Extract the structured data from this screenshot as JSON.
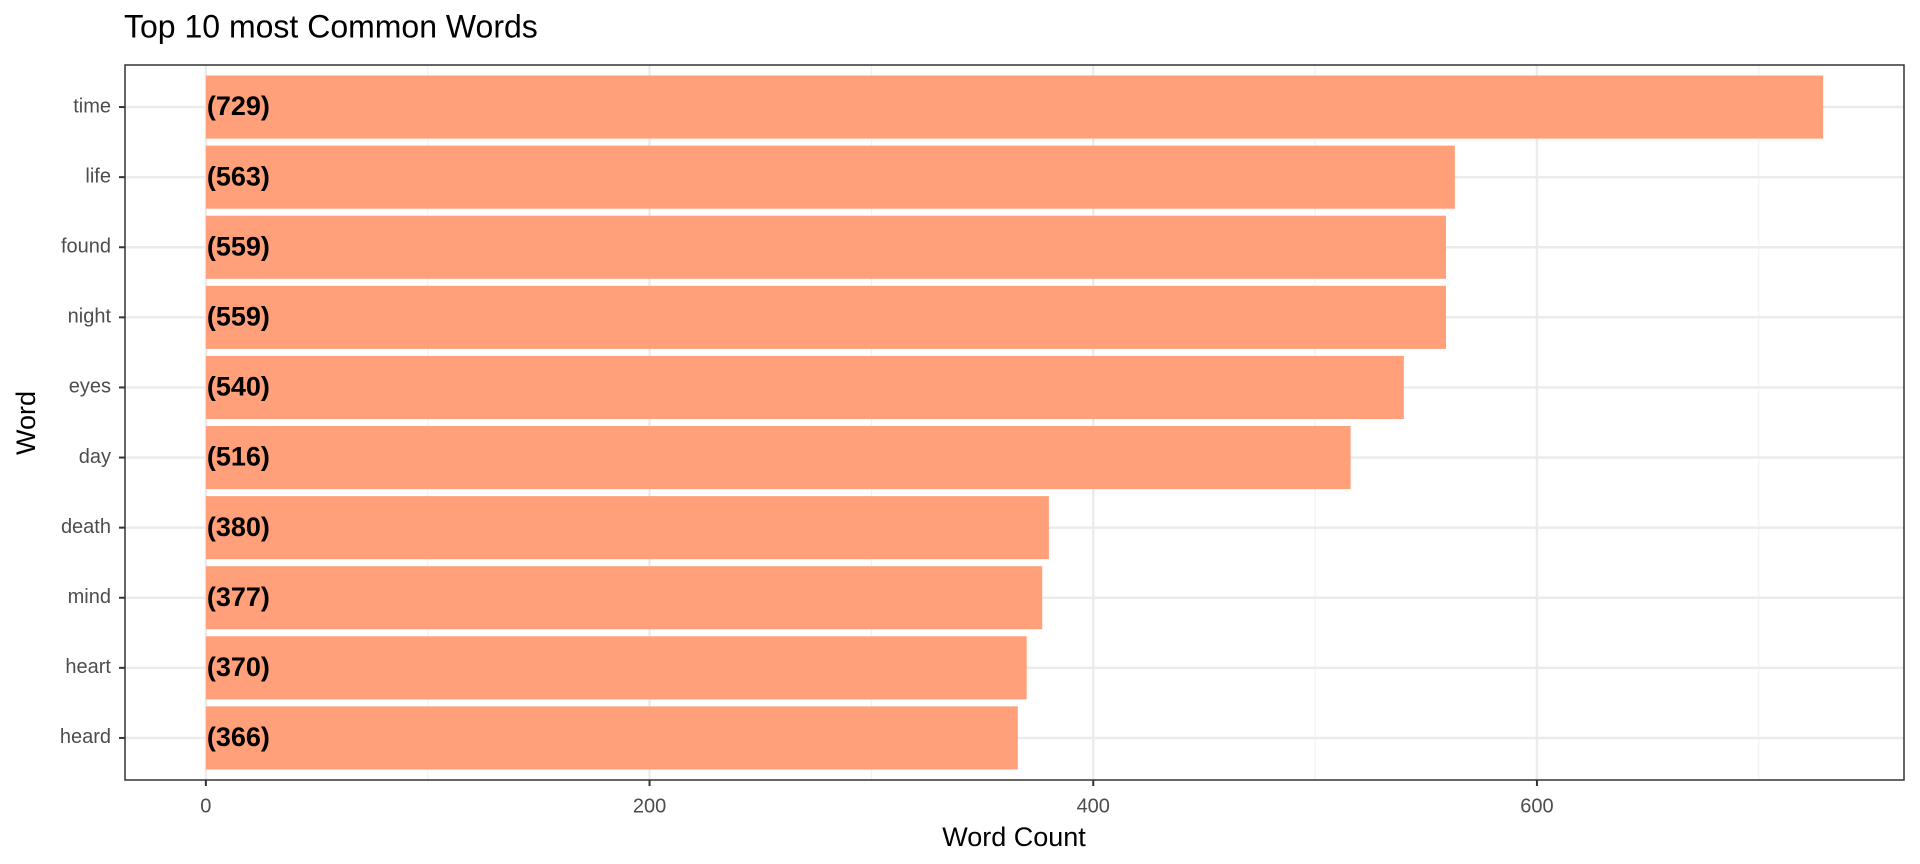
{
  "chart_data": {
    "type": "bar",
    "orientation": "horizontal",
    "title": "Top 10 most Common Words",
    "x_label": "Word Count",
    "y_label": "Word",
    "categories": [
      "time",
      "life",
      "found",
      "night",
      "eyes",
      "day",
      "death",
      "mind",
      "heart",
      "heard"
    ],
    "values": [
      729,
      563,
      559,
      559,
      540,
      516,
      380,
      377,
      370,
      366
    ],
    "value_labels": [
      "(729)",
      "(563)",
      "(559)",
      "(559)",
      "(540)",
      "(516)",
      "(380)",
      "(377)",
      "(370)",
      "(366)"
    ],
    "color": "#ffa07a",
    "xlim": [
      -36.45,
      765.45
    ],
    "xticks": [
      0,
      200,
      400,
      600
    ],
    "xminor": [
      100,
      300,
      500,
      700
    ],
    "grid": true
  }
}
